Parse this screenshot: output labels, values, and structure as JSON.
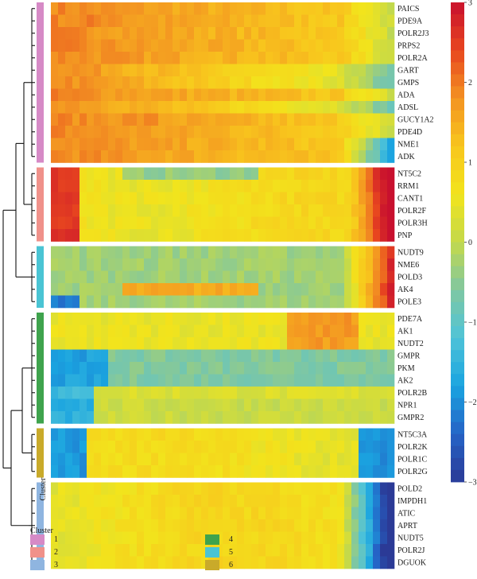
{
  "chart_data": {
    "type": "heatmap",
    "colorbar": {
      "ticks": [
        "3",
        "2",
        "1",
        "0",
        "−1",
        "−2",
        "−3"
      ],
      "tick_values": [
        3,
        2,
        1,
        0,
        -1,
        -2,
        -3
      ],
      "range": [
        -3,
        3
      ],
      "colormap": [
        "#2b3a96",
        "#2563c6",
        "#1aa4e0",
        "#4fc3d8",
        "#7fc7a2",
        "#c3d94b",
        "#f2e41c",
        "#f8c61d",
        "#f39322",
        "#e8461f",
        "#c8102e"
      ]
    },
    "side_label": "Cluster",
    "cluster_colors": {
      "1": "#d68ac6",
      "2": "#f0918a",
      "3": "#8fb5e0",
      "4": "#3fa34d",
      "5": "#4ac4d4",
      "6": "#c9aa2a"
    },
    "clusters": [
      {
        "id": "1",
        "genes": [
          "PAICS",
          "PDE9A",
          "POLR2J3",
          "PRPS2",
          "POLR2A",
          "GART",
          "GMPS",
          "ADA",
          "ADSL",
          "GUCY1A2",
          "PDE4D",
          "NME1",
          "ADK"
        ]
      },
      {
        "id": "2",
        "genes": [
          "NT5C2",
          "RRM1",
          "CANT1",
          "POLR2F",
          "POLR3H",
          "PNP"
        ]
      },
      {
        "id": "5",
        "genes": [
          "NUDT9",
          "NME6",
          "POLD3",
          "AK4",
          "POLE3"
        ]
      },
      {
        "id": "4",
        "genes": [
          "PDE7A",
          "AK1",
          "NUDT2",
          "GMPR",
          "PKM",
          "AK2",
          "POLR2B",
          "NPR1",
          "GMPR2"
        ]
      },
      {
        "id": "6",
        "genes": [
          "NT5C3A",
          "POLR2K",
          "POLR1C",
          "POLR2G"
        ]
      },
      {
        "id": "3",
        "genes": [
          "POLD2",
          "IMPDH1",
          "ATIC",
          "APRT",
          "NUDT5",
          "POLR2J",
          "DGUOK"
        ]
      }
    ],
    "legend": {
      "title": "Cluster",
      "items": [
        "1",
        "2",
        "3",
        "4",
        "5",
        "6"
      ],
      "position": "bottom-left"
    }
  }
}
